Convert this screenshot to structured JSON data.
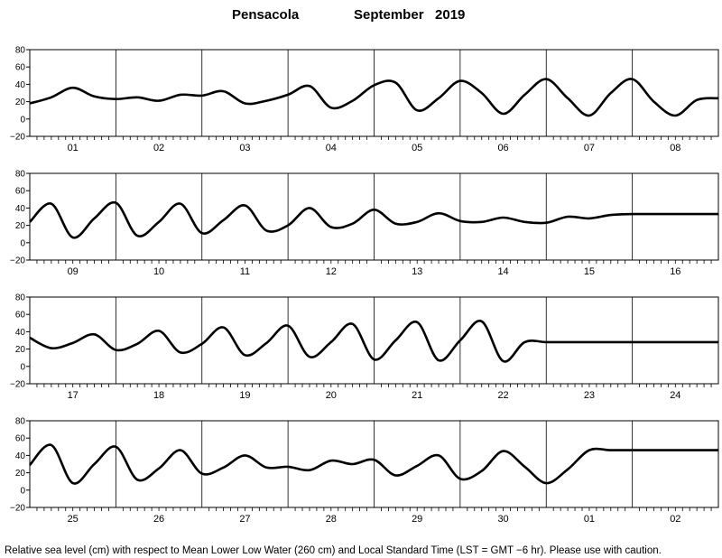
{
  "header": {
    "station": "Pensacola",
    "month_year": "September   2019"
  },
  "footer": {
    "note": "Relative sea level (cm) with respect to Mean Lower Low Water (260 cm) and Local Standard Time (LST = GMT −6 hr). Please use with caution."
  },
  "chart_data": [
    {
      "type": "line",
      "ylim": [
        -20,
        80
      ],
      "yticks": [
        -20,
        0,
        20,
        40,
        60,
        80
      ],
      "grid": "vertical day dividers",
      "day_labels": [
        "01",
        "02",
        "03",
        "04",
        "05",
        "06",
        "07",
        "08"
      ],
      "x_start_hour": 0,
      "x_end_hour": 192,
      "x": [
        0,
        6,
        12,
        18,
        24,
        30,
        36,
        42,
        48,
        54,
        60,
        66,
        72,
        78,
        84,
        90,
        96,
        102,
        108,
        114,
        120,
        126,
        132,
        138,
        144,
        150,
        156,
        162,
        168,
        174,
        180,
        186,
        192
      ],
      "values": [
        18,
        25,
        36,
        26,
        23,
        25,
        21,
        28,
        27,
        32,
        18,
        21,
        28,
        38,
        13,
        21,
        39,
        42,
        10,
        24,
        44,
        30,
        6,
        28,
        46,
        24,
        4,
        30,
        46,
        20,
        4,
        22,
        24
      ]
    },
    {
      "type": "line",
      "ylim": [
        -20,
        80
      ],
      "yticks": [
        -20,
        0,
        20,
        40,
        60,
        80
      ],
      "grid": "vertical day dividers",
      "day_labels": [
        "09",
        "10",
        "11",
        "12",
        "13",
        "14",
        "15",
        "16"
      ],
      "x_start_hour": 192,
      "x_end_hour": 384,
      "x": [
        192,
        198,
        204,
        210,
        216,
        222,
        228,
        234,
        240,
        246,
        252,
        258,
        264,
        270,
        276,
        282,
        288,
        294,
        300,
        306,
        312,
        318,
        324,
        330,
        336,
        342,
        348,
        354,
        360,
        366,
        372,
        378,
        384
      ],
      "values": [
        24,
        45,
        6,
        28,
        46,
        8,
        24,
        45,
        11,
        26,
        43,
        14,
        20,
        40,
        18,
        22,
        38,
        22,
        24,
        34,
        25,
        24,
        29,
        24,
        23,
        30,
        28,
        32,
        33,
        33,
        33,
        33,
        33
      ]
    },
    {
      "type": "line",
      "ylim": [
        -20,
        80
      ],
      "yticks": [
        -20,
        0,
        20,
        40,
        60,
        80
      ],
      "grid": "vertical day dividers",
      "day_labels": [
        "17",
        "18",
        "19",
        "20",
        "21",
        "22",
        "23",
        "24"
      ],
      "x_start_hour": 384,
      "x_end_hour": 576,
      "x": [
        384,
        390,
        396,
        402,
        408,
        414,
        420,
        426,
        432,
        438,
        444,
        450,
        456,
        462,
        468,
        474,
        480,
        486,
        492,
        498,
        504,
        510,
        516,
        522,
        528,
        534,
        540,
        546,
        552,
        558,
        564,
        570,
        576
      ],
      "values": [
        33,
        21,
        27,
        37,
        19,
        26,
        41,
        16,
        26,
        45,
        13,
        27,
        47,
        11,
        28,
        49,
        8,
        30,
        51,
        7,
        30,
        52,
        6,
        28,
        28,
        28,
        28,
        28,
        28,
        28,
        28,
        28,
        28
      ]
    },
    {
      "type": "line",
      "ylim": [
        -20,
        80
      ],
      "yticks": [
        -20,
        0,
        20,
        40,
        60,
        80
      ],
      "grid": "vertical day dividers",
      "day_labels": [
        "25",
        "26",
        "27",
        "28",
        "29",
        "30",
        "01",
        "02"
      ],
      "x_start_hour": 576,
      "x_end_hour": 768,
      "x": [
        576,
        582,
        588,
        594,
        600,
        606,
        612,
        618,
        624,
        630,
        636,
        642,
        648,
        654,
        660,
        666,
        672,
        678,
        684,
        690,
        696,
        702,
        708,
        714,
        720,
        726,
        732,
        738,
        744,
        750,
        756,
        762,
        768
      ],
      "values": [
        29,
        52,
        8,
        30,
        50,
        12,
        25,
        46,
        19,
        26,
        40,
        26,
        27,
        23,
        34,
        30,
        35,
        17,
        28,
        40,
        13,
        22,
        45,
        27,
        8,
        24,
        46,
        46,
        46,
        46,
        46,
        46,
        46
      ]
    }
  ]
}
